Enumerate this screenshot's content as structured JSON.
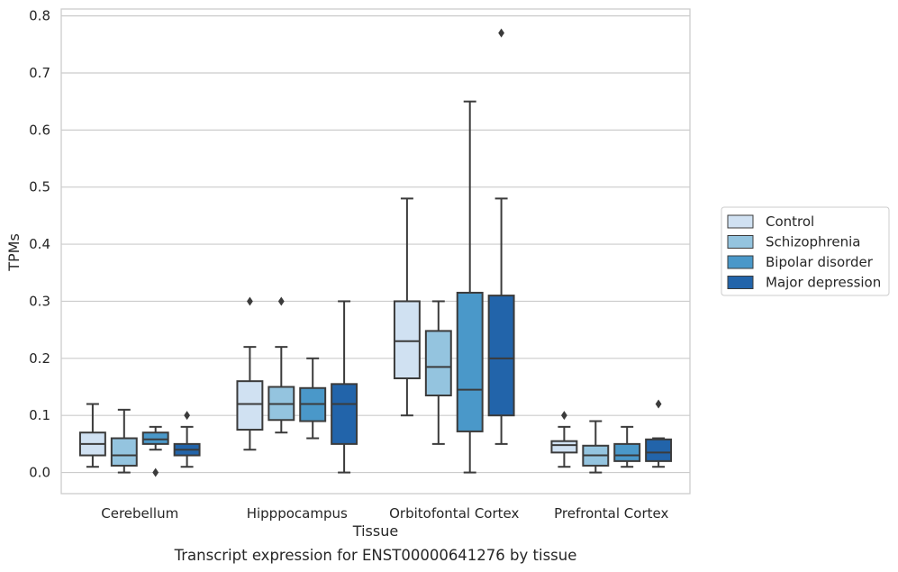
{
  "chart_data": {
    "type": "boxplot",
    "caption": "Transcript expression for ENST00000641276 by tissue",
    "xlabel": "Tissue",
    "ylabel": "TPMs",
    "ylim": [
      -0.037,
      0.812
    ],
    "yticks": [
      0.0,
      0.1,
      0.2,
      0.3,
      0.4,
      0.5,
      0.6,
      0.7,
      0.8
    ],
    "ytick_labels": [
      "0.0",
      "0.1",
      "0.2",
      "0.3",
      "0.4",
      "0.5",
      "0.6",
      "0.7",
      "0.8"
    ],
    "grid": "horizontal",
    "legend_position": "right",
    "categories": [
      "Cerebellum",
      "Hipppocampus",
      "Orbitofontal Cortex",
      "Prefrontal Cortex"
    ],
    "series": [
      {
        "name": "Control",
        "color": "#d0e1f2",
        "boxes": [
          {
            "whislo": 0.01,
            "q1": 0.03,
            "med": 0.05,
            "q3": 0.07,
            "whishi": 0.12,
            "fliers": []
          },
          {
            "whislo": 0.04,
            "q1": 0.075,
            "med": 0.12,
            "q3": 0.16,
            "whishi": 0.22,
            "fliers": [
              0.3
            ]
          },
          {
            "whislo": 0.1,
            "q1": 0.165,
            "med": 0.23,
            "q3": 0.3,
            "whishi": 0.48,
            "fliers": []
          },
          {
            "whislo": 0.01,
            "q1": 0.035,
            "med": 0.048,
            "q3": 0.055,
            "whishi": 0.08,
            "fliers": [
              0.1
            ]
          }
        ]
      },
      {
        "name": "Schizophrenia",
        "color": "#94c4df",
        "boxes": [
          {
            "whislo": 0.0,
            "q1": 0.012,
            "med": 0.03,
            "q3": 0.06,
            "whishi": 0.11,
            "fliers": []
          },
          {
            "whislo": 0.07,
            "q1": 0.092,
            "med": 0.12,
            "q3": 0.15,
            "whishi": 0.22,
            "fliers": [
              0.3
            ]
          },
          {
            "whislo": 0.05,
            "q1": 0.135,
            "med": 0.185,
            "q3": 0.248,
            "whishi": 0.3,
            "fliers": []
          },
          {
            "whislo": 0.0,
            "q1": 0.012,
            "med": 0.03,
            "q3": 0.047,
            "whishi": 0.09,
            "fliers": []
          }
        ]
      },
      {
        "name": "Bipolar disorder",
        "color": "#4a98c9",
        "boxes": [
          {
            "whislo": 0.04,
            "q1": 0.05,
            "med": 0.058,
            "q3": 0.07,
            "whishi": 0.08,
            "fliers": [
              0.0
            ]
          },
          {
            "whislo": 0.06,
            "q1": 0.09,
            "med": 0.12,
            "q3": 0.148,
            "whishi": 0.2,
            "fliers": []
          },
          {
            "whislo": 0.0,
            "q1": 0.072,
            "med": 0.145,
            "q3": 0.315,
            "whishi": 0.65,
            "fliers": []
          },
          {
            "whislo": 0.01,
            "q1": 0.02,
            "med": 0.03,
            "q3": 0.05,
            "whishi": 0.08,
            "fliers": []
          }
        ]
      },
      {
        "name": "Major depression",
        "color": "#2264aa",
        "boxes": [
          {
            "whislo": 0.01,
            "q1": 0.03,
            "med": 0.04,
            "q3": 0.05,
            "whishi": 0.08,
            "fliers": [
              0.1
            ]
          },
          {
            "whislo": 0.0,
            "q1": 0.05,
            "med": 0.12,
            "q3": 0.155,
            "whishi": 0.3,
            "fliers": []
          },
          {
            "whislo": 0.05,
            "q1": 0.1,
            "med": 0.2,
            "q3": 0.31,
            "whishi": 0.48,
            "fliers": [
              0.77
            ]
          },
          {
            "whislo": 0.01,
            "q1": 0.02,
            "med": 0.035,
            "q3": 0.058,
            "whishi": 0.06,
            "fliers": [
              0.12
            ]
          }
        ]
      }
    ]
  }
}
